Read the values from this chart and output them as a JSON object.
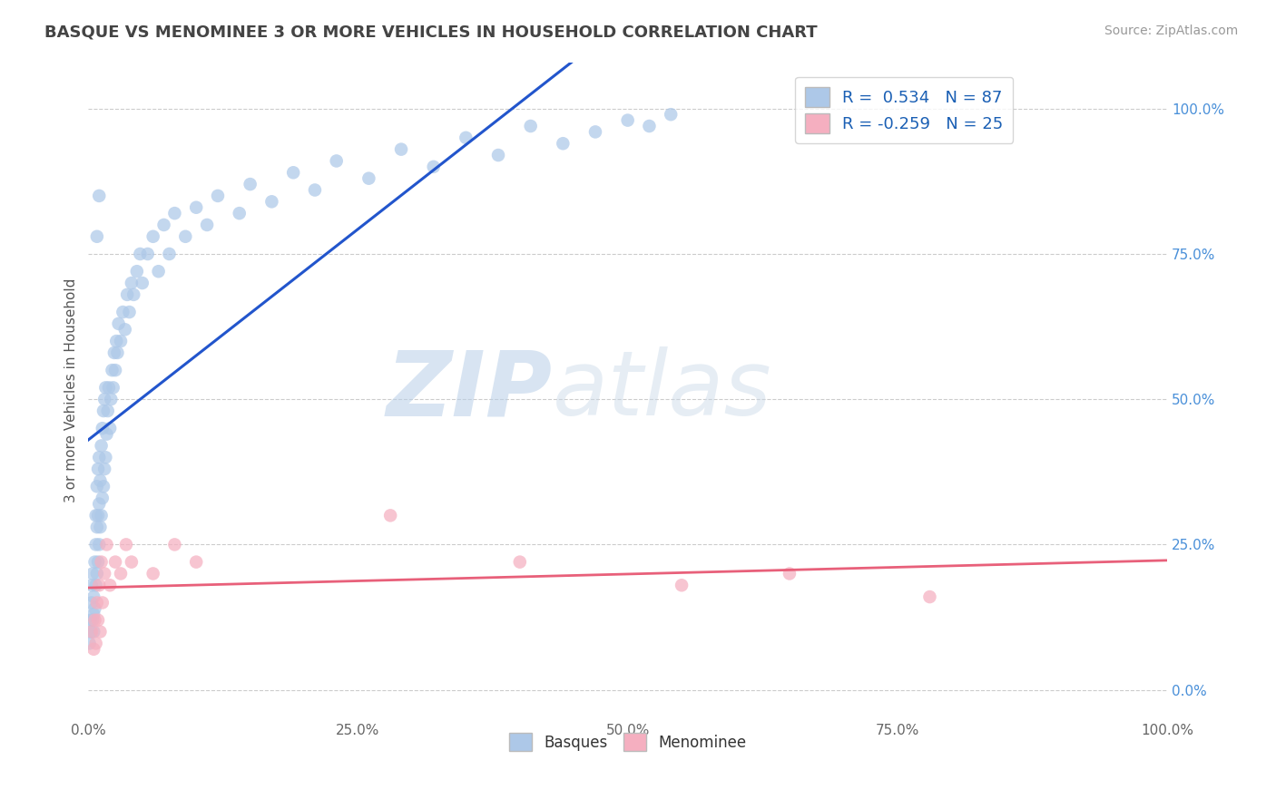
{
  "title": "BASQUE VS MENOMINEE 3 OR MORE VEHICLES IN HOUSEHOLD CORRELATION CHART",
  "source": "Source: ZipAtlas.com",
  "ylabel": "3 or more Vehicles in Household",
  "watermark_zip": "ZIP",
  "watermark_atlas": "atlas",
  "basque_R": 0.534,
  "basque_N": 87,
  "menominee_R": -0.259,
  "menominee_N": 25,
  "basque_color": "#adc8e8",
  "menominee_color": "#f5afc0",
  "basque_line_color": "#2255cc",
  "menominee_line_color": "#e8607a",
  "background_color": "#ffffff",
  "grid_color": "#cccccc",
  "title_color": "#444444",
  "right_ytick_labels": [
    "0.0%",
    "25.0%",
    "50.0%",
    "75.0%",
    "100.0%"
  ],
  "right_ytick_positions": [
    0.0,
    0.25,
    0.5,
    0.75,
    1.0
  ],
  "xtick_labels": [
    "0.0%",
    "25.0%",
    "50.0%",
    "75.0%",
    "100.0%"
  ],
  "xtick_positions": [
    0.0,
    0.25,
    0.5,
    0.75,
    1.0
  ],
  "basque_x": [
    0.001,
    0.002,
    0.002,
    0.003,
    0.003,
    0.004,
    0.004,
    0.005,
    0.005,
    0.005,
    0.006,
    0.006,
    0.007,
    0.007,
    0.007,
    0.008,
    0.008,
    0.008,
    0.009,
    0.009,
    0.009,
    0.01,
    0.01,
    0.01,
    0.011,
    0.011,
    0.012,
    0.012,
    0.013,
    0.013,
    0.014,
    0.014,
    0.015,
    0.015,
    0.016,
    0.016,
    0.017,
    0.018,
    0.019,
    0.02,
    0.021,
    0.022,
    0.023,
    0.024,
    0.025,
    0.026,
    0.027,
    0.028,
    0.03,
    0.032,
    0.034,
    0.036,
    0.038,
    0.04,
    0.042,
    0.045,
    0.048,
    0.05,
    0.055,
    0.06,
    0.065,
    0.07,
    0.075,
    0.08,
    0.09,
    0.1,
    0.11,
    0.12,
    0.14,
    0.15,
    0.17,
    0.19,
    0.21,
    0.23,
    0.26,
    0.29,
    0.32,
    0.35,
    0.38,
    0.41,
    0.44,
    0.47,
    0.5,
    0.52,
    0.54,
    0.01,
    0.008
  ],
  "basque_y": [
    0.08,
    0.1,
    0.12,
    0.15,
    0.18,
    0.12,
    0.2,
    0.1,
    0.13,
    0.16,
    0.14,
    0.22,
    0.18,
    0.25,
    0.3,
    0.2,
    0.28,
    0.35,
    0.22,
    0.3,
    0.38,
    0.25,
    0.32,
    0.4,
    0.28,
    0.36,
    0.3,
    0.42,
    0.33,
    0.45,
    0.35,
    0.48,
    0.38,
    0.5,
    0.4,
    0.52,
    0.44,
    0.48,
    0.52,
    0.45,
    0.5,
    0.55,
    0.52,
    0.58,
    0.55,
    0.6,
    0.58,
    0.63,
    0.6,
    0.65,
    0.62,
    0.68,
    0.65,
    0.7,
    0.68,
    0.72,
    0.75,
    0.7,
    0.75,
    0.78,
    0.72,
    0.8,
    0.75,
    0.82,
    0.78,
    0.83,
    0.8,
    0.85,
    0.82,
    0.87,
    0.84,
    0.89,
    0.86,
    0.91,
    0.88,
    0.93,
    0.9,
    0.95,
    0.92,
    0.97,
    0.94,
    0.96,
    0.98,
    0.97,
    0.99,
    0.85,
    0.78
  ],
  "menominee_x": [
    0.003,
    0.005,
    0.006,
    0.007,
    0.008,
    0.009,
    0.01,
    0.011,
    0.012,
    0.013,
    0.015,
    0.017,
    0.02,
    0.025,
    0.03,
    0.035,
    0.04,
    0.06,
    0.08,
    0.1,
    0.28,
    0.4,
    0.55,
    0.65,
    0.78
  ],
  "menominee_y": [
    0.1,
    0.07,
    0.12,
    0.08,
    0.15,
    0.12,
    0.18,
    0.1,
    0.22,
    0.15,
    0.2,
    0.25,
    0.18,
    0.22,
    0.2,
    0.25,
    0.22,
    0.2,
    0.25,
    0.22,
    0.3,
    0.22,
    0.18,
    0.2,
    0.16
  ]
}
